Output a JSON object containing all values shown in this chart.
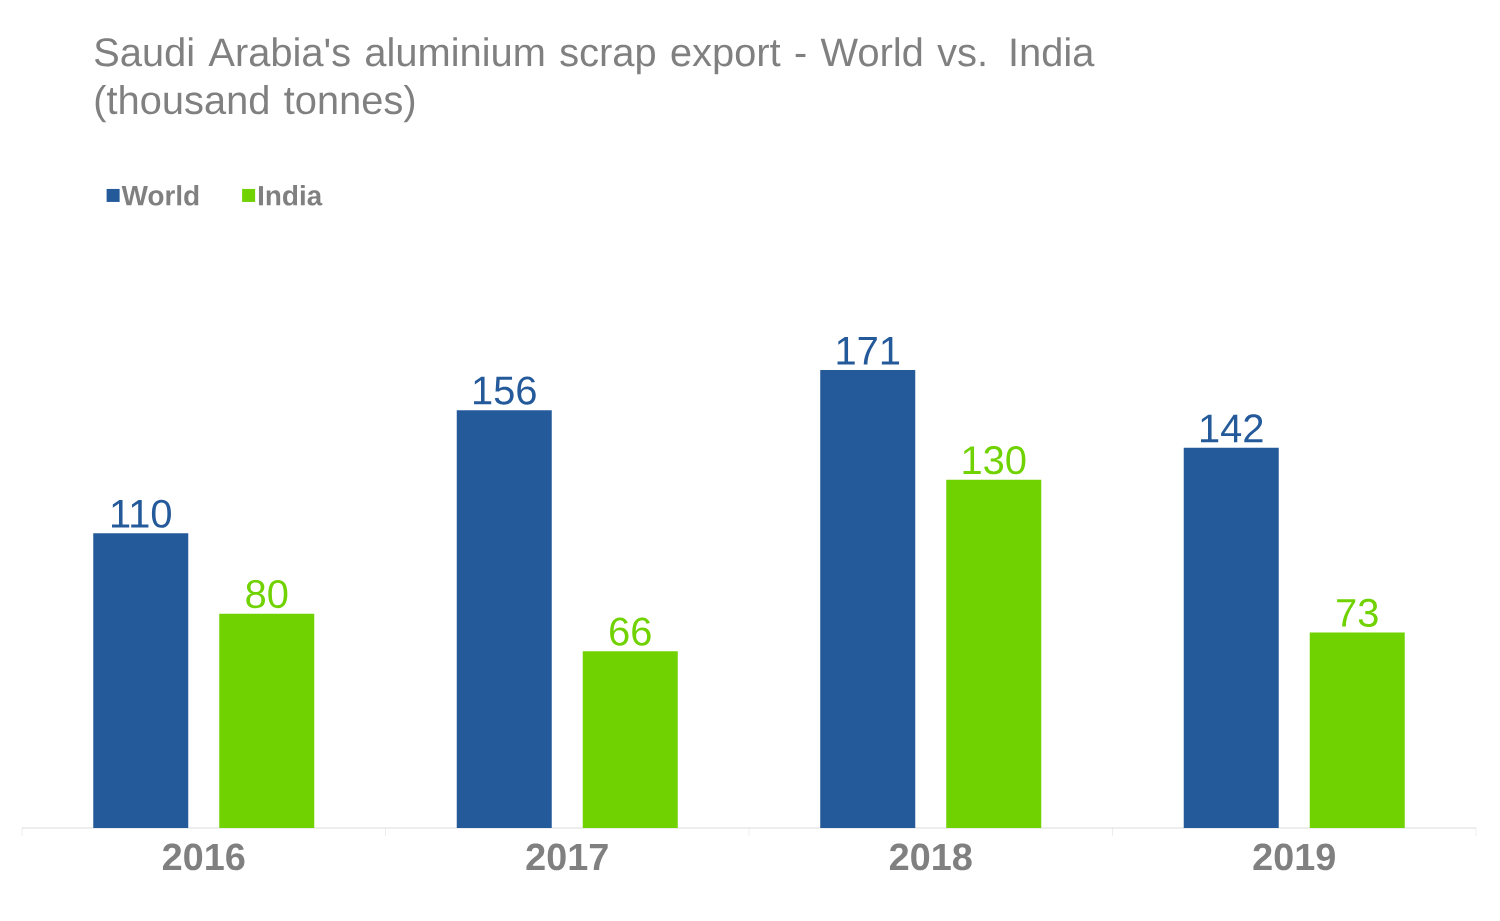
{
  "chart_data": {
    "type": "bar",
    "title": "Saudi Arabia's aluminium scrap export - World vs. India (thousand tonnes)",
    "categories": [
      "2016",
      "2017",
      "2018",
      "2019"
    ],
    "series": [
      {
        "name": "World",
        "color": "#245a9a",
        "values": [
          110,
          156,
          171,
          142
        ]
      },
      {
        "name": "India",
        "color": "#70d200",
        "values": [
          80,
          66,
          130,
          73
        ]
      }
    ],
    "data_labels": true,
    "legend": "top left"
  }
}
